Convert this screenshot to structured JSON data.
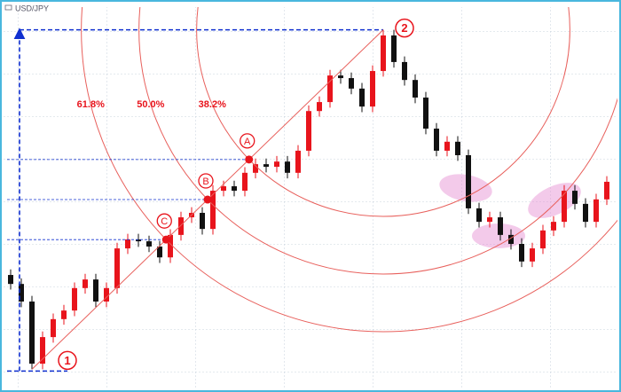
{
  "chart_data": {
    "type": "candlestick",
    "title": "USD/JPY",
    "ylim": [
      0,
      100
    ],
    "open": [
      28.9,
      26.5,
      21.8,
      5.2,
      12.3,
      17.1,
      19.4,
      25.4,
      27.7,
      21.8,
      25.4,
      36.0,
      38.4,
      37.9,
      36.5,
      33.6,
      39.6,
      44.3,
      45.5,
      41.2,
      51.4,
      52.6,
      51.4,
      56.2,
      58.5,
      57.8,
      59.2,
      56.2,
      62.1,
      72.7,
      75.1,
      82.2,
      81.5,
      78.7,
      73.9,
      83.4,
      92.9,
      85.8,
      81.0,
      76.3,
      68.0,
      62.1,
      64.5,
      60.9,
      46.7,
      43.1,
      44.3,
      39.6,
      37.2,
      32.5,
      36.0,
      40.8,
      43.1,
      51.4,
      47.9,
      43.1,
      49.1
    ],
    "high": [
      30.4,
      28.0,
      23.3,
      13.8,
      18.6,
      20.9,
      26.9,
      29.2,
      29.2,
      26.9,
      37.5,
      39.9,
      39.9,
      39.4,
      38.0,
      41.1,
      45.8,
      47.0,
      47.0,
      52.9,
      54.1,
      54.1,
      57.7,
      60.0,
      60.0,
      60.7,
      60.7,
      63.6,
      74.2,
      76.6,
      83.7,
      83.7,
      83.0,
      80.2,
      84.9,
      94.4,
      94.4,
      87.3,
      82.5,
      77.8,
      69.5,
      66.0,
      66.0,
      62.4,
      48.2,
      45.8,
      45.8,
      41.1,
      38.7,
      37.5,
      42.3,
      44.6,
      52.9,
      52.9,
      49.4,
      50.6,
      55.3
    ],
    "low": [
      25.0,
      20.3,
      3.7,
      3.7,
      10.8,
      15.6,
      17.9,
      23.9,
      20.3,
      20.3,
      23.9,
      34.5,
      36.4,
      35.0,
      32.1,
      32.1,
      38.1,
      42.8,
      39.7,
      39.7,
      49.9,
      49.9,
      49.9,
      54.7,
      56.3,
      56.3,
      54.7,
      54.7,
      60.6,
      71.2,
      73.6,
      80.0,
      77.2,
      72.4,
      72.4,
      81.9,
      84.3,
      79.5,
      74.8,
      66.5,
      60.6,
      60.6,
      59.4,
      45.2,
      41.6,
      41.6,
      38.1,
      35.7,
      31.0,
      31.0,
      34.5,
      39.3,
      41.6,
      46.4,
      41.6,
      41.6,
      47.6
    ],
    "close": [
      26.5,
      21.8,
      5.2,
      12.3,
      17.1,
      19.4,
      25.4,
      27.7,
      21.8,
      25.4,
      36.0,
      38.4,
      37.9,
      36.5,
      33.6,
      39.6,
      44.3,
      45.5,
      41.2,
      51.4,
      52.6,
      51.4,
      56.2,
      58.5,
      57.8,
      59.2,
      56.2,
      62.1,
      72.7,
      75.1,
      82.2,
      81.5,
      78.7,
      73.9,
      83.4,
      92.9,
      85.8,
      81.0,
      76.3,
      68.0,
      62.1,
      64.5,
      60.9,
      46.7,
      43.1,
      44.3,
      39.6,
      37.2,
      32.5,
      36.0,
      40.8,
      43.1,
      51.4,
      47.9,
      43.1,
      49.1,
      53.8
    ],
    "up_color": "#e8141c",
    "down_color": "#111111",
    "swing_labels": [
      "1",
      "2"
    ],
    "fib_levels": [
      {
        "value": 38.2,
        "label": "38.2%",
        "point": "A"
      },
      {
        "value": 50.0,
        "label": "50.0%",
        "point": "B"
      },
      {
        "value": 61.8,
        "label": "61.8%",
        "point": "C"
      }
    ],
    "arc_color": "#e8605c",
    "grid": true
  }
}
